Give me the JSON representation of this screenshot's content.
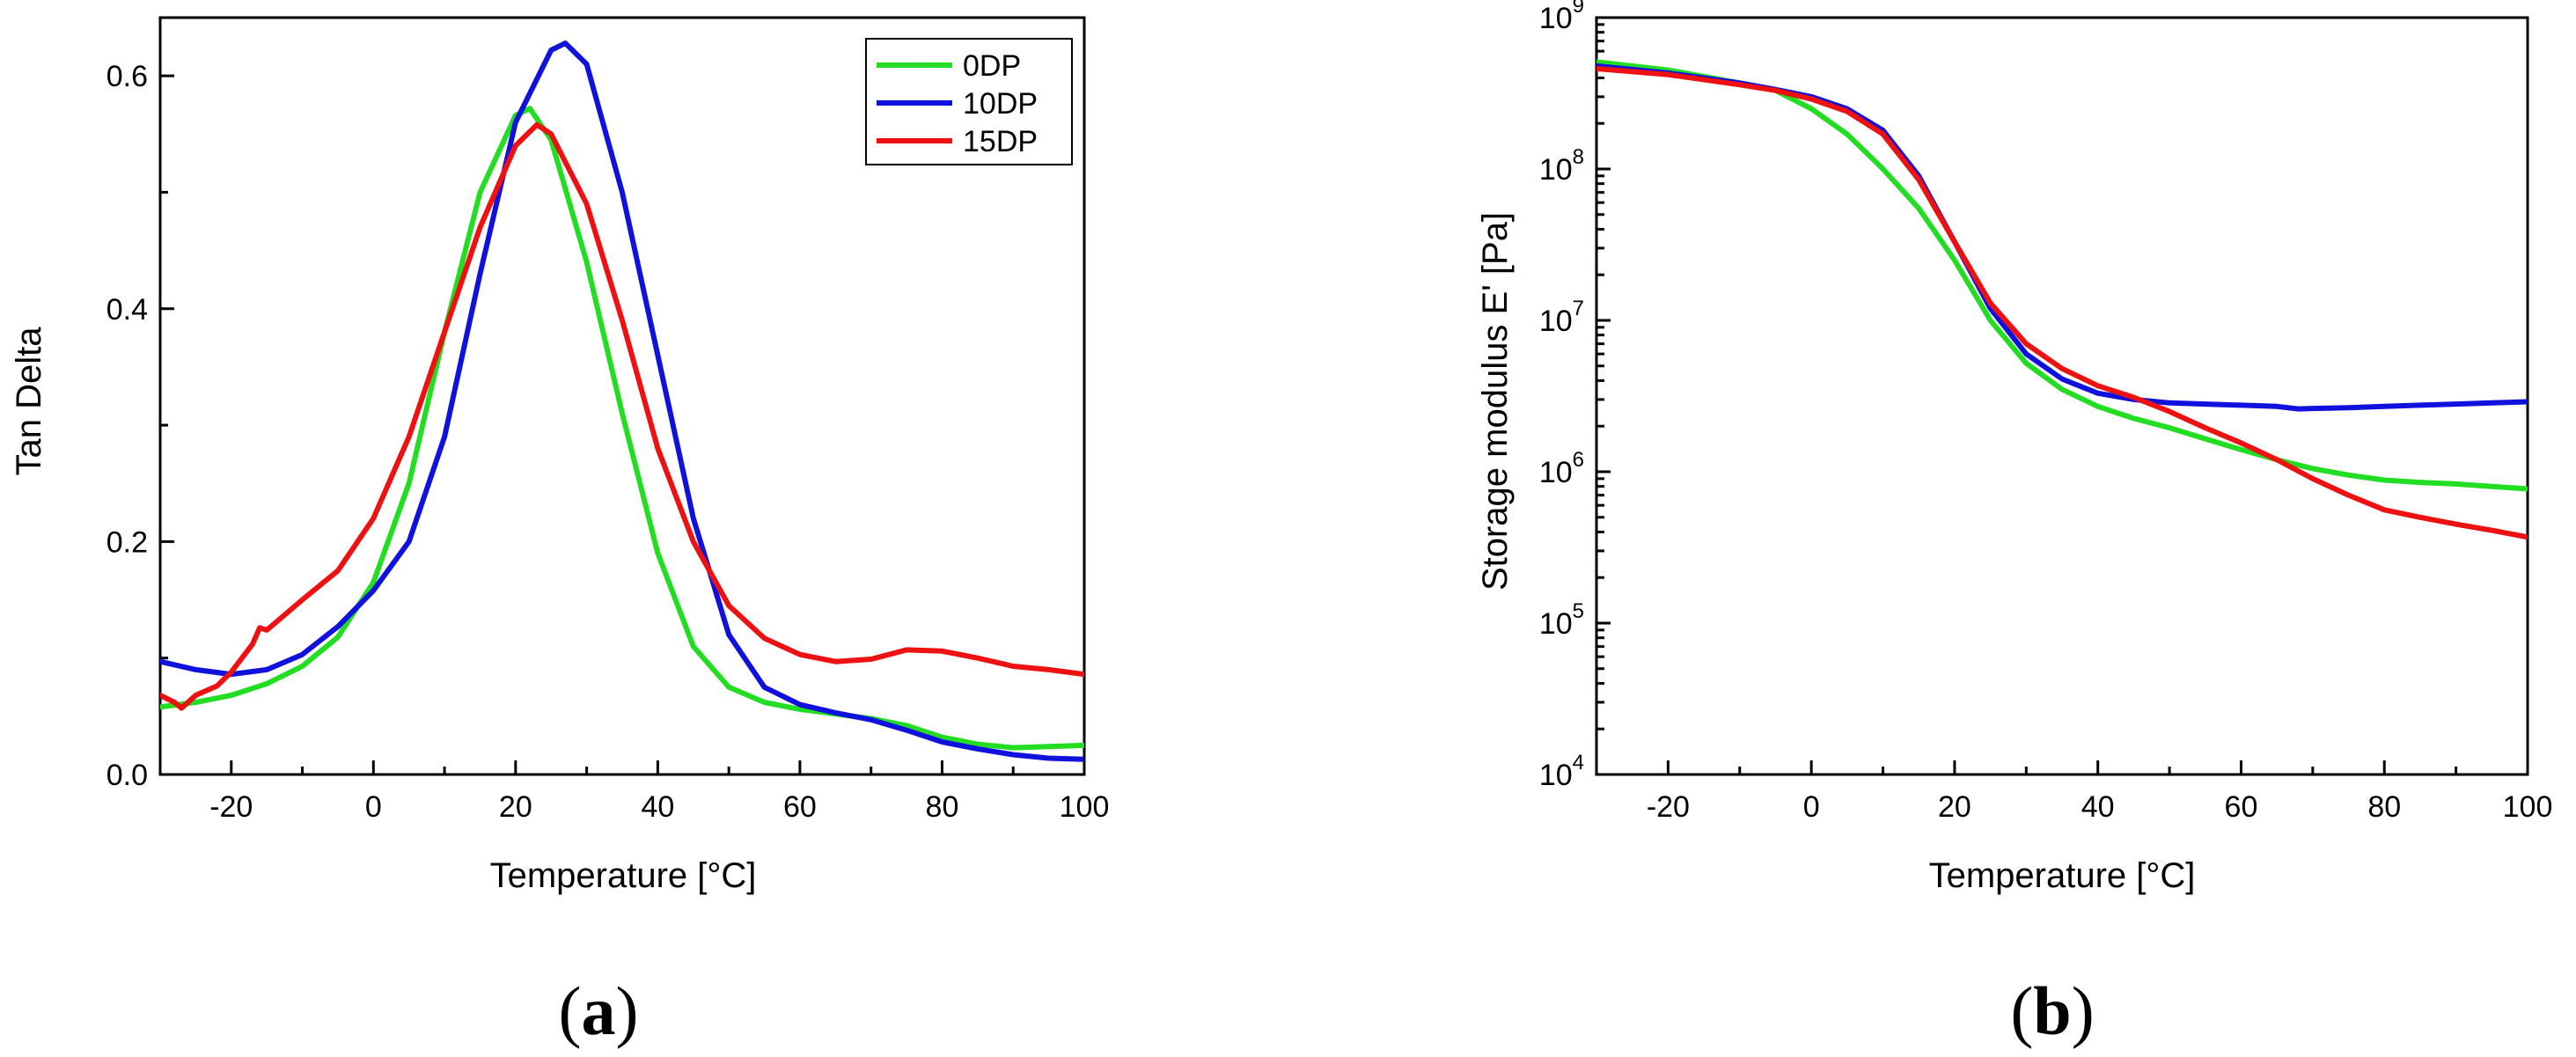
{
  "colors": {
    "0DP": "#22dd22",
    "10DP": "#1111dd",
    "15DP": "#ee1111"
  },
  "chart_data": [
    {
      "type": "line",
      "panel_label": {
        "open": "(",
        "letter": "a",
        "close": ")"
      },
      "title": "",
      "xlabel": "Temperature [°C]",
      "ylabel": "Tan Delta",
      "xlim": [
        -30,
        100
      ],
      "ylim": [
        0.0,
        0.65
      ],
      "yscale": "linear",
      "xticks": [
        -20,
        0,
        20,
        40,
        60,
        80,
        100
      ],
      "xtick_labels": [
        "-20",
        "0",
        "20",
        "40",
        "60",
        "80",
        "100"
      ],
      "yticks": [
        0.0,
        0.2,
        0.4,
        0.6
      ],
      "ytick_labels": [
        "0.0",
        "0.2",
        "0.4",
        "0.6"
      ],
      "legend": "top-right",
      "series": [
        {
          "name": "0DP",
          "color": "#22dd22",
          "x": [
            -30,
            -25,
            -20,
            -15,
            -10,
            -5,
            0,
            5,
            10,
            15,
            20,
            22,
            25,
            30,
            35,
            40,
            45,
            50,
            55,
            60,
            65,
            70,
            75,
            80,
            85,
            90,
            95,
            100
          ],
          "y": [
            0.058,
            0.062,
            0.068,
            0.078,
            0.093,
            0.118,
            0.165,
            0.25,
            0.38,
            0.5,
            0.566,
            0.572,
            0.545,
            0.44,
            0.31,
            0.19,
            0.11,
            0.075,
            0.062,
            0.056,
            0.052,
            0.048,
            0.042,
            0.032,
            0.026,
            0.023,
            0.024,
            0.025
          ]
        },
        {
          "name": "10DP",
          "color": "#1111dd",
          "x": [
            -30,
            -25,
            -20,
            -15,
            -10,
            -5,
            0,
            5,
            10,
            15,
            20,
            25,
            27,
            30,
            35,
            40,
            45,
            50,
            55,
            60,
            65,
            70,
            75,
            80,
            85,
            90,
            95,
            100
          ],
          "y": [
            0.097,
            0.09,
            0.086,
            0.09,
            0.103,
            0.127,
            0.158,
            0.2,
            0.29,
            0.43,
            0.56,
            0.622,
            0.628,
            0.61,
            0.5,
            0.36,
            0.22,
            0.12,
            0.075,
            0.06,
            0.053,
            0.047,
            0.038,
            0.028,
            0.022,
            0.017,
            0.014,
            0.013
          ]
        },
        {
          "name": "15DP",
          "color": "#ee1111",
          "x": [
            -30,
            -28,
            -27,
            -25,
            -22,
            -20,
            -17,
            -16,
            -15,
            -10,
            -5,
            0,
            5,
            10,
            15,
            20,
            23,
            25,
            30,
            35,
            40,
            45,
            50,
            55,
            60,
            65,
            70,
            75,
            80,
            85,
            90,
            95,
            100
          ],
          "y": [
            0.068,
            0.062,
            0.057,
            0.068,
            0.076,
            0.088,
            0.112,
            0.126,
            0.124,
            0.15,
            0.175,
            0.22,
            0.29,
            0.38,
            0.47,
            0.54,
            0.558,
            0.55,
            0.49,
            0.39,
            0.28,
            0.2,
            0.145,
            0.117,
            0.103,
            0.097,
            0.099,
            0.107,
            0.106,
            0.1,
            0.093,
            0.09,
            0.086
          ]
        }
      ]
    },
    {
      "type": "line",
      "panel_label": {
        "open": "(",
        "letter": "b",
        "close": ")"
      },
      "title": "",
      "xlabel": "Temperature [°C]",
      "ylabel": "Storage modulus E' [Pa]",
      "xlim": [
        -30,
        100
      ],
      "ylim": [
        10000,
        1000000000
      ],
      "yscale": "log",
      "xticks": [
        -20,
        0,
        20,
        40,
        60,
        80,
        100
      ],
      "xtick_labels": [
        "-20",
        "0",
        "20",
        "40",
        "60",
        "80",
        "100"
      ],
      "yticks": [
        10000,
        100000,
        1000000,
        10000000,
        100000000,
        1000000000
      ],
      "ytick_labels": [
        {
          "base": "10",
          "exp": "4"
        },
        {
          "base": "10",
          "exp": "5"
        },
        {
          "base": "10",
          "exp": "6"
        },
        {
          "base": "10",
          "exp": "7"
        },
        {
          "base": "10",
          "exp": "8"
        },
        {
          "base": "10",
          "exp": "9"
        }
      ],
      "legend": "none",
      "series": [
        {
          "name": "0DP",
          "color": "#22dd22",
          "x": [
            -30,
            -20,
            -10,
            -5,
            0,
            5,
            10,
            15,
            20,
            25,
            30,
            35,
            40,
            45,
            50,
            55,
            60,
            65,
            70,
            75,
            80,
            85,
            90,
            95,
            100
          ],
          "y": [
            510000000,
            450000000,
            370000000,
            330000000,
            250000000,
            170000000,
            100000000,
            55000000,
            25000000,
            10000000,
            5200000,
            3500000,
            2700000,
            2250000,
            1950000,
            1650000,
            1400000,
            1200000,
            1050000,
            950000,
            880000,
            850000,
            830000,
            800000,
            770000
          ]
        },
        {
          "name": "10DP",
          "color": "#1111dd",
          "x": [
            -30,
            -20,
            -10,
            -5,
            0,
            5,
            10,
            15,
            20,
            25,
            30,
            35,
            40,
            45,
            50,
            55,
            60,
            65,
            68,
            70,
            75,
            80,
            85,
            90,
            95,
            100
          ],
          "y": [
            480000000,
            430000000,
            370000000,
            335000000,
            300000000,
            250000000,
            180000000,
            90000000,
            33000000,
            12000000,
            6000000,
            4100000,
            3300000,
            3000000,
            2850000,
            2800000,
            2750000,
            2700000,
            2600000,
            2620000,
            2650000,
            2700000,
            2750000,
            2800000,
            2850000,
            2900000
          ]
        },
        {
          "name": "15DP",
          "color": "#ee1111",
          "x": [
            -30,
            -20,
            -10,
            -5,
            0,
            5,
            10,
            15,
            20,
            25,
            30,
            35,
            40,
            45,
            50,
            55,
            60,
            65,
            70,
            75,
            80,
            85,
            90,
            95,
            100
          ],
          "y": [
            460000000,
            420000000,
            360000000,
            330000000,
            290000000,
            240000000,
            170000000,
            85000000,
            33000000,
            13000000,
            7000000,
            4800000,
            3700000,
            3100000,
            2500000,
            1950000,
            1550000,
            1200000,
            900000,
            700000,
            560000,
            500000,
            450000,
            410000,
            370000
          ]
        }
      ]
    }
  ]
}
